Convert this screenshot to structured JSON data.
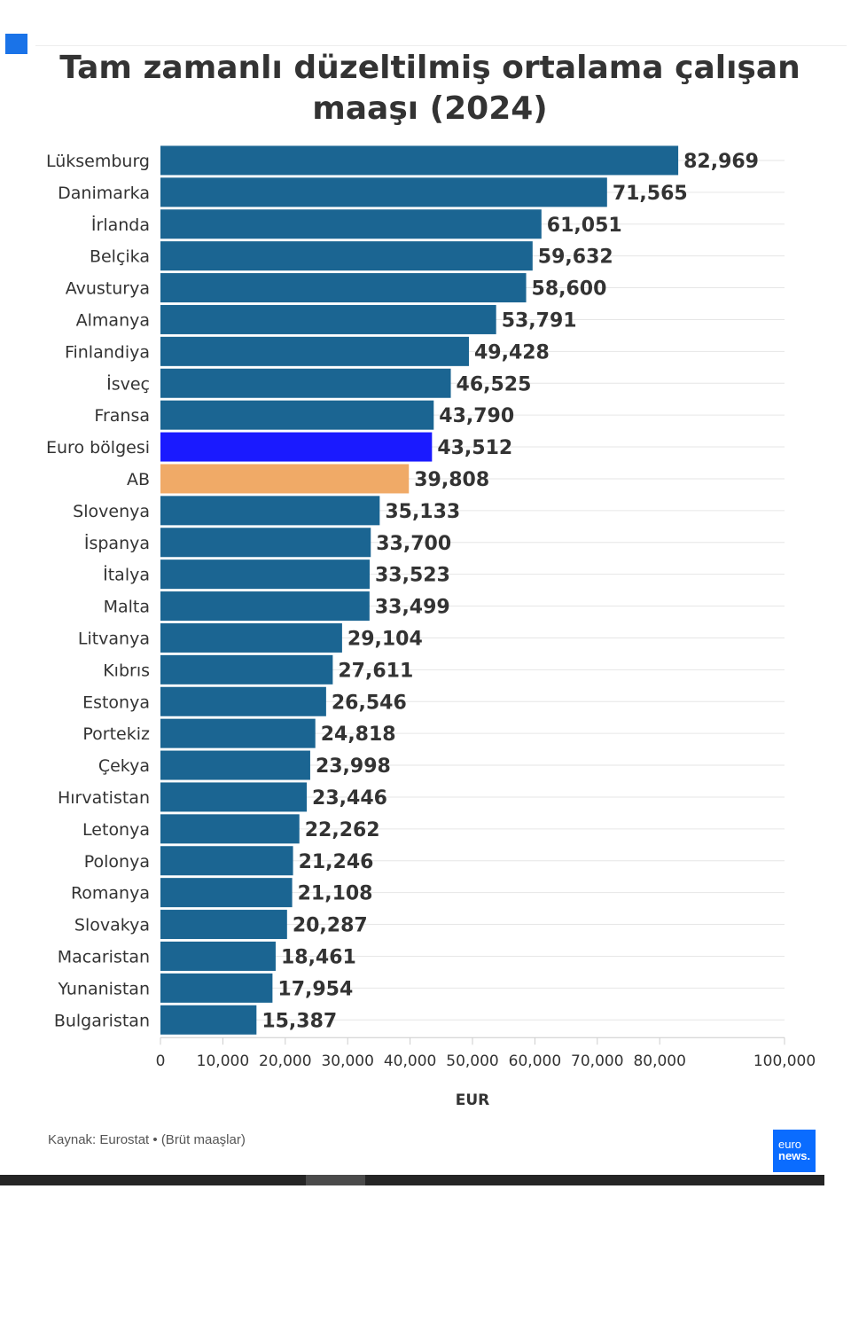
{
  "title": "Tam zamanlı düzeltilmiş ortalama çalışan maaşı (2024)",
  "source": "Kaynak: Eurostat • (Brüt maaşlar)",
  "logo": {
    "line1": "euro",
    "line2": "news."
  },
  "colors": {
    "default": "#1b6592",
    "eurozone": "#1a1aff",
    "eu": "#f0aa67",
    "grid": "#e6e6e6"
  },
  "chart_data": {
    "type": "bar",
    "orientation": "horizontal",
    "title": "Tam zamanlı düzeltilmiş ortalama çalışan maaşı (2024)",
    "xlabel": "EUR",
    "ylabel": "",
    "xlim": [
      0,
      100000
    ],
    "x_ticks": [
      0,
      10000,
      20000,
      30000,
      40000,
      50000,
      60000,
      70000,
      80000,
      100000
    ],
    "x_tick_labels": [
      "0",
      "10,000",
      "20,000",
      "30,000",
      "40,000",
      "50,000",
      "60,000",
      "70,000",
      "80,000",
      "100,000"
    ],
    "grid": true,
    "categories": [
      "Lüksemburg",
      "Danimarka",
      "İrlanda",
      "Belçika",
      "Avusturya",
      "Almanya",
      "Finlandiya",
      "İsveç",
      "Fransa",
      "Euro bölgesi",
      "AB",
      "Slovenya",
      "İspanya",
      "İtalya",
      "Malta",
      "Litvanya",
      "Kıbrıs",
      "Estonya",
      "Portekiz",
      "Çekya",
      "Hırvatistan",
      "Letonya",
      "Polonya",
      "Romanya",
      "Slovakya",
      "Macaristan",
      "Yunanistan",
      "Bulgaristan"
    ],
    "values": [
      82969,
      71565,
      61051,
      59632,
      58600,
      53791,
      49428,
      46525,
      43790,
      43512,
      39808,
      35133,
      33700,
      33523,
      33499,
      29104,
      27611,
      26546,
      24818,
      23998,
      23446,
      22262,
      21246,
      21108,
      20287,
      18461,
      17954,
      15387
    ],
    "value_labels": [
      "82,969",
      "71,565",
      "61,051",
      "59,632",
      "58,600",
      "53,791",
      "49,428",
      "46,525",
      "43,790",
      "43,512",
      "39,808",
      "35,133",
      "33,700",
      "33,523",
      "33,499",
      "29,104",
      "27,611",
      "26,546",
      "24,818",
      "23,998",
      "23,446",
      "22,262",
      "21,246",
      "21,108",
      "20,287",
      "18,461",
      "17,954",
      "15,387"
    ],
    "highlight": {
      "Euro bölgesi": "#1a1aff",
      "AB": "#f0aa67"
    }
  }
}
